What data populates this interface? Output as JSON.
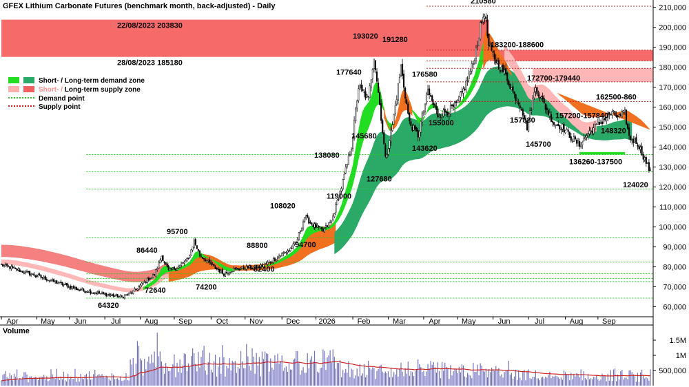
{
  "chart_data": {
    "type": "candlestick",
    "title": "GFEX Lithium Carbonate Futures (benchmark month, back-adjusted) - Daily",
    "x_labels": [
      "Apr",
      "May",
      "Jun",
      "Jul",
      "Aug",
      "Sep",
      "Oct",
      "Nov",
      "Dec",
      "2026",
      "Feb",
      "Mar",
      "Apr",
      "May",
      "Jun",
      "Jul",
      "Aug",
      "Sep"
    ],
    "y_ticks": [
      "60,000",
      "70,000",
      "80,000",
      "90,000",
      "100,000",
      "110,000",
      "120,000",
      "130,000",
      "140,000",
      "150,000",
      "160,000",
      "170,000",
      "180,000",
      "190,000",
      "200,000",
      "210,000"
    ],
    "ylim": [
      55000,
      213000
    ],
    "volume_label": "Volume",
    "volume_ticks": [
      "1.5M",
      "1M",
      "500,000"
    ],
    "legend": {
      "demand_zone": "Short- / Long-term demand zone",
      "supply_zone_prefix": "Short- / ",
      "supply_zone_suffix": "Long-term supply zone",
      "demand_point": "Demand point",
      "supply_point": "Supply point",
      "colors": {
        "short_demand": "#22dd22",
        "long_demand": "#2aaa66",
        "short_supply": "#ffb0b0",
        "long_supply": "#f06060",
        "demand_point": "#22cc22",
        "supply_point": "#cc2222",
        "orange_band": "#f07020",
        "volume_bar": "#7070c0",
        "volume_ma": "#cc2222"
      }
    },
    "supply_zone_labels": {
      "top": "22/08/2023 203830",
      "bottom": "28/08/2023 185180"
    },
    "annotations": [
      {
        "text": "210580",
        "x": "May",
        "y": 210580
      },
      {
        "text": "193020",
        "x": "Feb",
        "y": 193020
      },
      {
        "text": "191280",
        "x": "Feb",
        "y": 191280
      },
      {
        "text": "183200-188600",
        "x": "May",
        "y": 188600
      },
      {
        "text": "177640",
        "x": "2026",
        "y": 177640
      },
      {
        "text": "176580",
        "x": "Mar",
        "y": 176580
      },
      {
        "text": "172700-179440",
        "x": "Jun",
        "y": 172700
      },
      {
        "text": "162500-860",
        "x": "Aug",
        "y": 162500
      },
      {
        "text": "157200-157840",
        "x": "Jul",
        "y": 157200
      },
      {
        "text": "157880",
        "x": "Jun",
        "y": 157880
      },
      {
        "text": "155000",
        "x": "Apr",
        "y": 155000
      },
      {
        "text": "148320",
        "x": "Aug",
        "y": 148320
      },
      {
        "text": "145680",
        "x": "2026",
        "y": 145680
      },
      {
        "text": "145700",
        "x": "Jul",
        "y": 145700
      },
      {
        "text": "143620",
        "x": "Mar",
        "y": 143620
      },
      {
        "text": "138080",
        "x": "Dec",
        "y": 138080
      },
      {
        "text": "136260-137500",
        "x": "Aug",
        "y": 136260
      },
      {
        "text": "127680",
        "x": "Feb",
        "y": 127680
      },
      {
        "text": "124020",
        "x": "Sep",
        "y": 124020
      },
      {
        "text": "119000",
        "x": "Dec",
        "y": 119000
      },
      {
        "text": "108020",
        "x": "Nov",
        "y": 108020
      },
      {
        "text": "95700",
        "x": "Aug",
        "y": 95700
      },
      {
        "text": "94700",
        "x": "Dec",
        "y": 94700
      },
      {
        "text": "88800",
        "x": "Nov",
        "y": 88800
      },
      {
        "text": "86440",
        "x": "Jul",
        "y": 86440
      },
      {
        "text": "82400",
        "x": "Nov",
        "y": 82400
      },
      {
        "text": "74200",
        "x": "Sep",
        "y": 74200
      },
      {
        "text": "72640",
        "x": "Jul",
        "y": 72640
      },
      {
        "text": "64320",
        "x": "Jun",
        "y": 64320
      }
    ],
    "key_points": [
      {
        "i": 0,
        "v": 81000
      },
      {
        "i": 25,
        "v": 75500
      },
      {
        "i": 55,
        "v": 68500
      },
      {
        "i": 75,
        "v": 66000
      },
      {
        "i": 85,
        "v": 65000
      },
      {
        "i": 92,
        "v": 67000
      },
      {
        "i": 102,
        "v": 73000
      },
      {
        "i": 108,
        "v": 76000
      },
      {
        "i": 113,
        "v": 85500
      },
      {
        "i": 118,
        "v": 78000
      },
      {
        "i": 125,
        "v": 80000
      },
      {
        "i": 132,
        "v": 84000
      },
      {
        "i": 136,
        "v": 93000
      },
      {
        "i": 140,
        "v": 86000
      },
      {
        "i": 150,
        "v": 80000
      },
      {
        "i": 157,
        "v": 76500
      },
      {
        "i": 163,
        "v": 78500
      },
      {
        "i": 172,
        "v": 79500
      },
      {
        "i": 182,
        "v": 80000
      },
      {
        "i": 190,
        "v": 82500
      },
      {
        "i": 197,
        "v": 86000
      },
      {
        "i": 203,
        "v": 88500
      },
      {
        "i": 208,
        "v": 92000
      },
      {
        "i": 214,
        "v": 105000
      },
      {
        "i": 220,
        "v": 101000
      },
      {
        "i": 227,
        "v": 98000
      },
      {
        "i": 233,
        "v": 103000
      },
      {
        "i": 240,
        "v": 120000
      },
      {
        "i": 247,
        "v": 140000
      },
      {
        "i": 252,
        "v": 170000
      },
      {
        "i": 259,
        "v": 164000
      },
      {
        "i": 263,
        "v": 186000
      },
      {
        "i": 268,
        "v": 155000
      },
      {
        "i": 271,
        "v": 134000
      },
      {
        "i": 276,
        "v": 151000
      },
      {
        "i": 282,
        "v": 180000
      },
      {
        "i": 288,
        "v": 152000
      },
      {
        "i": 294,
        "v": 146000
      },
      {
        "i": 301,
        "v": 168000
      },
      {
        "i": 308,
        "v": 156000
      },
      {
        "i": 315,
        "v": 158000
      },
      {
        "i": 321,
        "v": 161000
      },
      {
        "i": 327,
        "v": 170000
      },
      {
        "i": 333,
        "v": 182000
      },
      {
        "i": 338,
        "v": 200000
      },
      {
        "i": 341,
        "v": 208000
      },
      {
        "i": 344,
        "v": 190000
      },
      {
        "i": 350,
        "v": 182000
      },
      {
        "i": 356,
        "v": 176000
      },
      {
        "i": 362,
        "v": 166000
      },
      {
        "i": 367,
        "v": 160000
      },
      {
        "i": 371,
        "v": 150000
      },
      {
        "i": 377,
        "v": 170000
      },
      {
        "i": 384,
        "v": 160000
      },
      {
        "i": 390,
        "v": 152000
      },
      {
        "i": 396,
        "v": 150000
      },
      {
        "i": 402,
        "v": 145000
      },
      {
        "i": 408,
        "v": 141000
      },
      {
        "i": 414,
        "v": 147000
      },
      {
        "i": 419,
        "v": 150000
      },
      {
        "i": 424,
        "v": 153000
      },
      {
        "i": 430,
        "v": 157000
      },
      {
        "i": 436,
        "v": 155000
      },
      {
        "i": 440,
        "v": 157000
      },
      {
        "i": 443,
        "v": 145000
      },
      {
        "i": 449,
        "v": 142000
      },
      {
        "i": 454,
        "v": 134000
      },
      {
        "i": 458,
        "v": 127500
      }
    ],
    "n_bars": 459,
    "price_min": 55000,
    "price_max": 213000,
    "short_demand_start": 100,
    "short_demand_end": 350,
    "long_demand_start": 235,
    "long_demand_end": 445,
    "long_supply_end": 118,
    "short_supply_end": 118,
    "orange_start": 118,
    "orange_end": 236,
    "orange2_start": 270,
    "orange2_end": 290,
    "orange3_start": 340,
    "orange3_end": 360,
    "orange4_start": 392,
    "orange4_end": 459,
    "supply_zone_top": 203830,
    "supply_zone_bottom": 185180,
    "supply_box_2_top": 188600,
    "supply_box_2_bottom": 183200,
    "supply_box_3_top": 179440,
    "supply_box_3_bottom": 172700,
    "demand_box": [
      136260,
      137500
    ],
    "supply_lines": [
      210580,
      188600,
      183200,
      179440,
      172700,
      162860
    ],
    "demand_lines": [
      136260,
      127680,
      119000,
      94700,
      82400,
      74200,
      72640,
      76500,
      64320
    ],
    "volume_max": 2000000
  }
}
